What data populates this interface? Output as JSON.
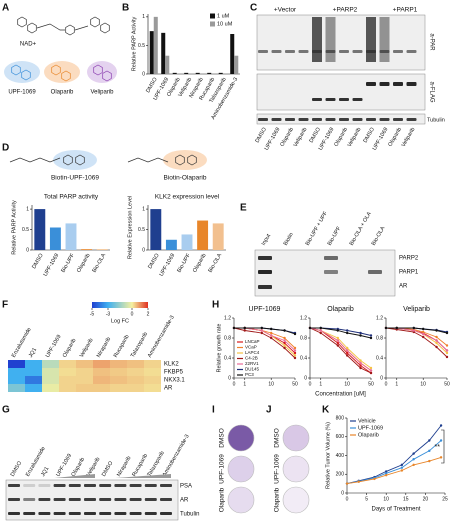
{
  "panel_letters": [
    "A",
    "B",
    "C",
    "D",
    "E",
    "F",
    "G",
    "H",
    "I",
    "J",
    "K"
  ],
  "drug_colors": {
    "UPF-1069": "#3a8fd9",
    "Olaparib": "#e8862a",
    "Veliparib": "#8b3fb0",
    "Bio-UPF": "#74b4ea",
    "Bio-OLA": "#f2a865"
  },
  "A": {
    "labels": [
      "NAD+",
      "UPF-1069",
      "Olaparib",
      "Veliparib"
    ]
  },
  "C": {
    "groups": [
      "+Vector",
      "+PARP2",
      "+PARP1"
    ],
    "lanes": [
      "DMSO",
      "UPF-1069",
      "Olaparib",
      "Veliparib"
    ],
    "rows": [
      "a-PAR",
      "a-FLAG",
      "Tubulin"
    ]
  },
  "D": {
    "probes": [
      "Biotin-UPF-1069",
      "Biotin-Olaparib"
    ]
  },
  "E": {
    "lanes": [
      "Input",
      "Biotin",
      "Bio-UPF + UPF",
      "Bio-UPF",
      "Bio-OLA + OLA",
      "Bio-OLA"
    ],
    "rows": [
      "PARP2",
      "PARP1",
      "AR"
    ]
  },
  "G": {
    "lanes": [
      "DMSO",
      "Enzalutamide",
      "JQ1",
      "UPF-1069",
      "Olaparib",
      "Veliparib",
      "DMSO",
      "Niraparib",
      "Rucaparib",
      "Talazoparib",
      "Aminobenzamide-3"
    ],
    "rows": [
      "PSA",
      "AR",
      "Tubulin"
    ]
  },
  "I": {
    "rows": [
      "DMSO",
      "UPF-1069",
      "Olaparib"
    ]
  },
  "J": {
    "rows": [
      "DMSO",
      "UPF-1069",
      "Olaparib"
    ]
  },
  "chart_data": [
    {
      "type": "bar",
      "ylabel": "Relative PARP Activity",
      "categories": [
        "DMSO",
        "UPF-1069",
        "Olaparib",
        "Veliparib",
        "Niraparib",
        "Rucaparib",
        "Talazoparib",
        "Aminobenzamide-3"
      ],
      "series": [
        {
          "name": "1 uM",
          "color": "#111111",
          "values": [
            0.75,
            0.72,
            0.02,
            0.02,
            0.02,
            0.02,
            0.02,
            0.7
          ]
        },
        {
          "name": "10 uM",
          "color": "#9a9a9a",
          "values": [
            1.0,
            0.32,
            0.01,
            0.01,
            0.01,
            0.01,
            0.01,
            0.32
          ]
        }
      ],
      "ylim": [
        0,
        1.05
      ],
      "yticks": [
        0,
        0.5,
        1
      ],
      "legend": "upper right"
    },
    {
      "type": "bar",
      "title": "Total PARP activity",
      "ylabel": "Relative PARP Activity",
      "categories": [
        "DMSO",
        "UPF-1069",
        "Bio-UPF",
        "Olaparib",
        "Bio-OLA"
      ],
      "values": [
        1,
        0.55,
        0.65,
        0.02,
        0.02
      ],
      "colors": [
        "#1f3f8f",
        "#3a8fd9",
        "#a9cdef",
        "#e8862a",
        "#f2c08f"
      ],
      "ylim": [
        0,
        1.1
      ],
      "yticks": [
        0,
        0.5,
        1
      ]
    },
    {
      "type": "bar",
      "title": "KLK2 expression level",
      "ylabel": "Relative Expression Level",
      "categories": [
        "DMSO",
        "UPF-1069",
        "Bio-UPF",
        "Olaparib",
        "Bio-OLA"
      ],
      "values": [
        1,
        0.25,
        0.38,
        0.72,
        0.65
      ],
      "colors": [
        "#1f3f8f",
        "#3a8fd9",
        "#a9cdef",
        "#e8862a",
        "#f2c08f"
      ],
      "ylim": [
        0,
        1.1
      ],
      "yticks": [
        0,
        0.5,
        1
      ]
    },
    {
      "type": "heatmap",
      "rows": [
        "KLK2",
        "FKBP5",
        "NKX3.1",
        "AR"
      ],
      "columns": [
        "Enzalutamide",
        "JQ1",
        "UPF-1069",
        "Olaparib",
        "Veliparib",
        "Niraparib",
        "Rucaparib",
        "Talazoparib",
        "Aminobenzamide-3"
      ],
      "values": [
        [
          -5,
          -3,
          -1,
          0.3,
          0.5,
          0.8,
          0.6,
          0.5,
          0.3
        ],
        [
          -3,
          -3,
          -0.5,
          0.2,
          0.3,
          0.5,
          0.4,
          0.3,
          0.2
        ],
        [
          -3,
          -4,
          -0.5,
          0.3,
          0.3,
          0.6,
          0.5,
          0.4,
          0.3
        ],
        [
          -2,
          -3,
          -0.2,
          0.3,
          0.4,
          0.4,
          0.3,
          0.3,
          0.2
        ]
      ],
      "colorbar_label": "Log FC",
      "zlim": [
        -5,
        2
      ],
      "colorbar_ticks": [
        -5,
        -3,
        0,
        2
      ],
      "colorbar_colors": [
        "#2040d0",
        "#40b0f0",
        "#f5f0a0",
        "#e03020"
      ]
    },
    {
      "type": "line",
      "title": "UPF-1069",
      "title_color": "#3a8fd9",
      "ylabel": "Relative growth rate",
      "x": [
        0,
        1,
        5,
        10,
        25,
        50
      ],
      "xlim": [
        0,
        50
      ],
      "xticks": [
        0,
        1,
        10,
        50
      ],
      "xscale": "symlog",
      "ylim": [
        0,
        1.2
      ],
      "yticks": [
        0,
        0.4,
        0.8,
        1.2
      ],
      "legend": "lower left",
      "series": [
        {
          "name": "LNCaP",
          "color": "#d7191c",
          "values": [
            1,
            1,
            0.95,
            0.85,
            0.7,
            0.5
          ]
        },
        {
          "name": "VCaP",
          "color": "#f07f2a",
          "values": [
            1,
            1,
            0.95,
            0.9,
            0.8,
            0.6
          ]
        },
        {
          "name": "LAPC4",
          "color": "#f5c242",
          "values": [
            1,
            1,
            0.95,
            0.85,
            0.65,
            0.45
          ]
        },
        {
          "name": "C4-2B",
          "color": "#a01818",
          "values": [
            1,
            0.95,
            0.9,
            0.8,
            0.6,
            0.4
          ]
        },
        {
          "name": "22RV1",
          "color": "#e86a9a",
          "values": [
            1,
            1,
            0.95,
            0.85,
            0.75,
            0.55
          ]
        },
        {
          "name": "DU145",
          "color": "#1f2f7a",
          "values": [
            1,
            1,
            1,
            0.98,
            0.95,
            0.9
          ]
        },
        {
          "name": "PC3",
          "color": "#111111",
          "values": [
            1,
            1,
            1,
            0.98,
            0.95,
            0.88
          ]
        }
      ]
    },
    {
      "type": "line",
      "title": "Olaparib",
      "title_color": "#e8862a",
      "xlabel": "Concentration [uM]",
      "x": [
        0,
        1,
        5,
        10,
        25,
        50
      ],
      "xlim": [
        0,
        50
      ],
      "xticks": [
        0,
        1,
        10,
        50
      ],
      "xscale": "symlog",
      "ylim": [
        0,
        1.2
      ],
      "yticks": [
        0,
        0.4,
        0.8,
        1.2
      ],
      "series": [
        {
          "color": "#d7191c",
          "values": [
            1,
            0.95,
            0.7,
            0.5,
            0.25,
            0.1
          ]
        },
        {
          "color": "#f07f2a",
          "values": [
            1,
            0.95,
            0.75,
            0.55,
            0.3,
            0.15
          ]
        },
        {
          "color": "#f5c242",
          "values": [
            1,
            0.95,
            0.8,
            0.6,
            0.35,
            0.2
          ]
        },
        {
          "color": "#a01818",
          "values": [
            1,
            0.9,
            0.65,
            0.45,
            0.2,
            0.1
          ]
        },
        {
          "color": "#e86a9a",
          "values": [
            1,
            0.95,
            0.75,
            0.55,
            0.3,
            0.15
          ]
        },
        {
          "color": "#1f2f7a",
          "values": [
            1,
            1,
            0.98,
            0.95,
            0.9,
            0.85
          ]
        },
        {
          "color": "#111111",
          "values": [
            1,
            1,
            0.95,
            0.9,
            0.85,
            0.8
          ]
        }
      ]
    },
    {
      "type": "line",
      "title": "Veliparib",
      "title_color": "#8b3fb0",
      "x": [
        0,
        1,
        5,
        10,
        25,
        50
      ],
      "xlim": [
        0,
        50
      ],
      "xticks": [
        0,
        1,
        10,
        50
      ],
      "xscale": "symlog",
      "ylim": [
        0,
        1.2
      ],
      "yticks": [
        0,
        0.4,
        0.8,
        1.2
      ],
      "series": [
        {
          "color": "#d7191c",
          "values": [
            1,
            1,
            0.95,
            0.9,
            0.75,
            0.55
          ]
        },
        {
          "color": "#f07f2a",
          "values": [
            1,
            1,
            0.97,
            0.92,
            0.82,
            0.65
          ]
        },
        {
          "color": "#f5c242",
          "values": [
            1,
            1,
            0.95,
            0.88,
            0.7,
            0.5
          ]
        },
        {
          "color": "#a01818",
          "values": [
            1,
            0.97,
            0.92,
            0.82,
            0.62,
            0.42
          ]
        },
        {
          "color": "#e86a9a",
          "values": [
            1,
            1,
            0.95,
            0.88,
            0.75,
            0.55
          ]
        },
        {
          "color": "#1f2f7a",
          "values": [
            1,
            1,
            1,
            0.98,
            0.96,
            0.92
          ]
        },
        {
          "color": "#111111",
          "values": [
            1,
            1,
            1,
            0.98,
            0.95,
            0.9
          ]
        }
      ]
    },
    {
      "type": "line",
      "xlabel": "Days of Treatment",
      "ylabel": "Relative Tumor Volume (%)",
      "x": [
        0,
        3,
        7,
        10,
        14,
        17,
        21,
        24
      ],
      "xlim": [
        0,
        25
      ],
      "xticks": [
        0,
        5,
        10,
        15,
        20,
        25
      ],
      "ylim": [
        0,
        800
      ],
      "yticks": [
        0,
        200,
        400,
        600,
        800
      ],
      "legend": "upper left",
      "annotation": "**",
      "series": [
        {
          "name": "Vehicle",
          "color": "#1f3f8f",
          "values": [
            100,
            130,
            170,
            230,
            300,
            420,
            560,
            720
          ]
        },
        {
          "name": "UPF-1069",
          "color": "#3a8fd9",
          "values": [
            100,
            125,
            160,
            210,
            270,
            360,
            450,
            560
          ]
        },
        {
          "name": "Olaparib",
          "color": "#e8862a",
          "values": [
            100,
            120,
            150,
            190,
            240,
            300,
            340,
            380
          ]
        }
      ]
    }
  ]
}
